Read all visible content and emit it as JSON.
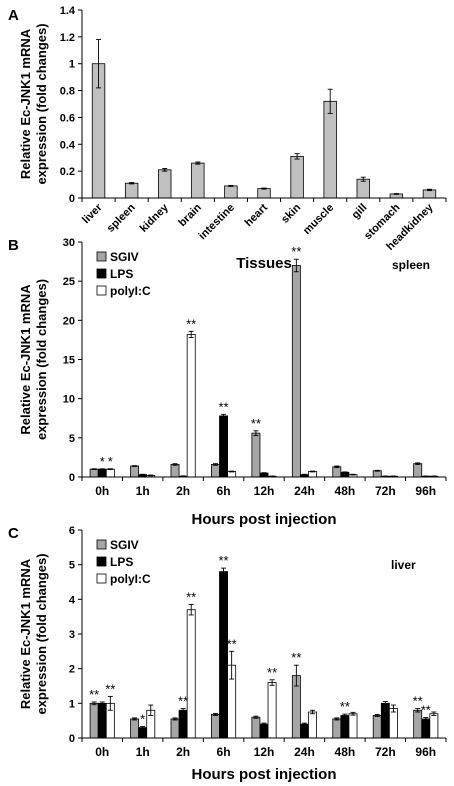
{
  "chart_data": [
    {
      "panel_label": "A",
      "type": "bar",
      "ylabel": "Relative Ec-JNK1 mRNA expression (fold changes)",
      "ylabel_lines": [
        "Relative Ec-JNK1 mRNA",
        "expression (fold changes)"
      ],
      "xlabel": "Tissues",
      "ylim": [
        0,
        1.4
      ],
      "yticks": [
        "0",
        "0.2",
        "0.4",
        "0.6",
        "0.8",
        "1",
        "1.2",
        "1.4"
      ],
      "categories": [
        "liver",
        "spleen",
        "kidney",
        "brain",
        "intestine",
        "heart",
        "skin",
        "muscle",
        "gill",
        "stomach",
        "headkidney"
      ],
      "series": [
        {
          "fill": "#c0c0c0",
          "values": [
            1.0,
            0.11,
            0.21,
            0.26,
            0.09,
            0.07,
            0.31,
            0.72,
            0.14,
            0.03,
            0.06
          ],
          "errors": [
            0.18,
            0.005,
            0.01,
            0.008,
            0.004,
            0.004,
            0.02,
            0.09,
            0.015,
            0.003,
            0.005
          ]
        }
      ]
    },
    {
      "panel_label": "B",
      "type": "bar",
      "title": "spleen",
      "ylabel": "Relative Ec-JNK1 mRNA expression (fold changes)",
      "ylabel_lines": [
        "Relative Ec-JNK1 mRNA",
        "expression (fold changes)"
      ],
      "xlabel": "Hours post injection",
      "ylim": [
        0,
        30
      ],
      "yticks": [
        "0",
        "5",
        "10",
        "15",
        "20",
        "25",
        "30"
      ],
      "categories": [
        "0h",
        "1h",
        "2h",
        "6h",
        "12h",
        "24h",
        "48h",
        "72h",
        "96h"
      ],
      "legend_position": "top-left",
      "series": [
        {
          "name": "SGIV",
          "fill": "#a6a6a6",
          "values": [
            1.0,
            1.4,
            1.6,
            1.6,
            5.6,
            27.0,
            1.3,
            0.8,
            1.7
          ],
          "errors": [
            0.05,
            0.05,
            0.1,
            0.1,
            0.3,
            0.8,
            0.1,
            0.05,
            0.1
          ],
          "sig": [
            "",
            "",
            "",
            "",
            "**",
            "**",
            "",
            "",
            ""
          ]
        },
        {
          "name": "LPS",
          "fill": "#000000",
          "values": [
            1.0,
            0.3,
            0.1,
            7.8,
            0.5,
            0.3,
            0.6,
            0.1,
            0.1
          ],
          "errors": [
            0.05,
            0.05,
            0.05,
            0.2,
            0.05,
            0.05,
            0.05,
            0.02,
            0.02
          ],
          "sig": [
            "*",
            "",
            "",
            "**",
            "",
            "",
            "",
            "",
            ""
          ]
        },
        {
          "name": "polyI:C",
          "fill": "#ffffff",
          "values": [
            1.0,
            0.2,
            18.2,
            0.7,
            0.1,
            0.7,
            0.3,
            0.1,
            0.1
          ],
          "errors": [
            0.05,
            0.05,
            0.4,
            0.05,
            0.02,
            0.05,
            0.05,
            0.02,
            0.02
          ],
          "sig": [
            "*",
            "",
            "**",
            "",
            "",
            "",
            "",
            "",
            ""
          ]
        }
      ]
    },
    {
      "panel_label": "C",
      "type": "bar",
      "title": "liver",
      "ylabel": "Relative Ec-JNK1 mRNA expression (fold changes)",
      "ylabel_lines": [
        "Relative Ec-JNK1 mRNA",
        "expression (fold changes)"
      ],
      "xlabel": "Hours post injection",
      "ylim": [
        0,
        6
      ],
      "yticks": [
        "0",
        "1",
        "2",
        "3",
        "4",
        "5",
        "6"
      ],
      "categories": [
        "0h",
        "1h",
        "2h",
        "6h",
        "12h",
        "24h",
        "48h",
        "72h",
        "96h"
      ],
      "legend_position": "top-left",
      "series": [
        {
          "name": "SGIV",
          "fill": "#a6a6a6",
          "values": [
            1.0,
            0.55,
            0.55,
            0.68,
            0.6,
            1.8,
            0.55,
            0.65,
            0.8
          ],
          "errors": [
            0.04,
            0.03,
            0.03,
            0.03,
            0.03,
            0.3,
            0.03,
            0.03,
            0.05
          ],
          "sig": [
            "**",
            "",
            "",
            "",
            "",
            "**",
            "",
            "",
            "**"
          ]
        },
        {
          "name": "LPS",
          "fill": "#000000",
          "values": [
            1.0,
            0.3,
            0.8,
            4.8,
            0.4,
            0.4,
            0.65,
            1.0,
            0.55
          ],
          "errors": [
            0.04,
            0.03,
            0.05,
            0.1,
            0.03,
            0.03,
            0.04,
            0.05,
            0.04
          ],
          "sig": [
            "",
            "*",
            "**",
            "**",
            "",
            "",
            "**",
            "",
            "**"
          ]
        },
        {
          "name": "polyI:C",
          "fill": "#ffffff",
          "values": [
            1.0,
            0.8,
            3.7,
            2.1,
            1.6,
            0.75,
            0.7,
            0.85,
            0.7
          ],
          "errors": [
            0.2,
            0.15,
            0.15,
            0.4,
            0.08,
            0.05,
            0.04,
            0.1,
            0.05
          ],
          "sig": [
            "**",
            "",
            "**",
            "**",
            "**",
            "",
            "",
            "",
            ""
          ]
        }
      ]
    }
  ]
}
